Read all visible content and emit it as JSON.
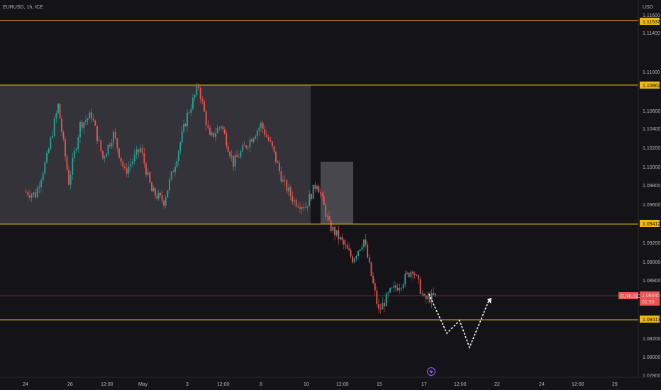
{
  "header": {
    "title": "EURUSD, 1h, ICE",
    "currency": "USD"
  },
  "price_axis": {
    "ticks": [
      "1.11600",
      "1.11400",
      "1.11000",
      "1.10600",
      "1.10400",
      "1.10200",
      "1.10000",
      "1.09800",
      "1.09600",
      "1.09200",
      "1.09000",
      "1.08800",
      "1.08200",
      "1.08000",
      "1.07800"
    ]
  },
  "time_axis": {
    "ticks": [
      "24",
      "26",
      "12:00",
      "May",
      "3",
      "12:00",
      "8",
      "10",
      "12:00",
      "15",
      "17",
      "12:00",
      "22",
      "24",
      "12:00",
      "29"
    ]
  },
  "levels": [
    "1.11537",
    "1.10862",
    "1.09412",
    "1.08413"
  ],
  "current_price": {
    "symbol": "EURUSD",
    "price": "1.08645",
    "countdown": "01:50"
  },
  "event_icon": "lightning-icon",
  "colors": {
    "background": "#141318",
    "up": "#26a69a",
    "down": "#ef5350",
    "level": "#f0b90b",
    "box": "#3a393f",
    "current": "#ef5350",
    "projection": "#ffffff"
  },
  "chart_data": {
    "type": "candlestick",
    "symbol": "EURUSD",
    "interval": "1h",
    "ylim": [
      1.0775,
      1.117
    ],
    "horizontal_levels": [
      1.11537,
      1.10862,
      1.09412,
      1.08413
    ],
    "current_price": 1.08645,
    "close_path": [
      {
        "x": "2023-04-24 00:00",
        "y": 1.0975
      },
      {
        "x": "2023-04-24 12:00",
        "y": 1.0972
      },
      {
        "x": "2023-04-25 00:00",
        "y": 1.101
      },
      {
        "x": "2023-04-25 12:00",
        "y": 1.1065
      },
      {
        "x": "2023-04-26 00:00",
        "y": 1.0985
      },
      {
        "x": "2023-04-26 12:00",
        "y": 1.1045
      },
      {
        "x": "2023-04-27 00:00",
        "y": 1.1055
      },
      {
        "x": "2023-04-27 12:00",
        "y": 1.101
      },
      {
        "x": "2023-04-28 00:00",
        "y": 1.1035
      },
      {
        "x": "2023-04-28 12:00",
        "y": 1.0995
      },
      {
        "x": "2023-05-01 00:00",
        "y": 1.102
      },
      {
        "x": "2023-05-01 12:00",
        "y": 1.0975
      },
      {
        "x": "2023-05-02 00:00",
        "y": 1.0965
      },
      {
        "x": "2023-05-02 12:00",
        "y": 1.1005
      },
      {
        "x": "2023-05-03 00:00",
        "y": 1.1055
      },
      {
        "x": "2023-05-03 12:00",
        "y": 1.1085
      },
      {
        "x": "2023-05-04 00:00",
        "y": 1.103
      },
      {
        "x": "2023-05-04 12:00",
        "y": 1.1045
      },
      {
        "x": "2023-05-05 00:00",
        "y": 1.1005
      },
      {
        "x": "2023-05-08 00:00",
        "y": 1.1045
      },
      {
        "x": "2023-05-08 12:00",
        "y": 1.102
      },
      {
        "x": "2023-05-09 00:00",
        "y": 1.0985
      },
      {
        "x": "2023-05-09 12:00",
        "y": 1.0965
      },
      {
        "x": "2023-05-10 00:00",
        "y": 1.096
      },
      {
        "x": "2023-05-10 12:00",
        "y": 1.0985
      },
      {
        "x": "2023-05-11 00:00",
        "y": 1.094
      },
      {
        "x": "2023-05-11 12:00",
        "y": 1.0925
      },
      {
        "x": "2023-05-12 00:00",
        "y": 1.0905
      },
      {
        "x": "2023-05-12 12:00",
        "y": 1.0925
      },
      {
        "x": "2023-05-15 00:00",
        "y": 1.085
      },
      {
        "x": "2023-05-15 12:00",
        "y": 1.087
      },
      {
        "x": "2023-05-16 00:00",
        "y": 1.088
      },
      {
        "x": "2023-05-16 12:00",
        "y": 1.0895
      },
      {
        "x": "2023-05-17 00:00",
        "y": 1.0862
      },
      {
        "x": "2023-05-17 12:00",
        "y": 1.0866
      }
    ]
  }
}
